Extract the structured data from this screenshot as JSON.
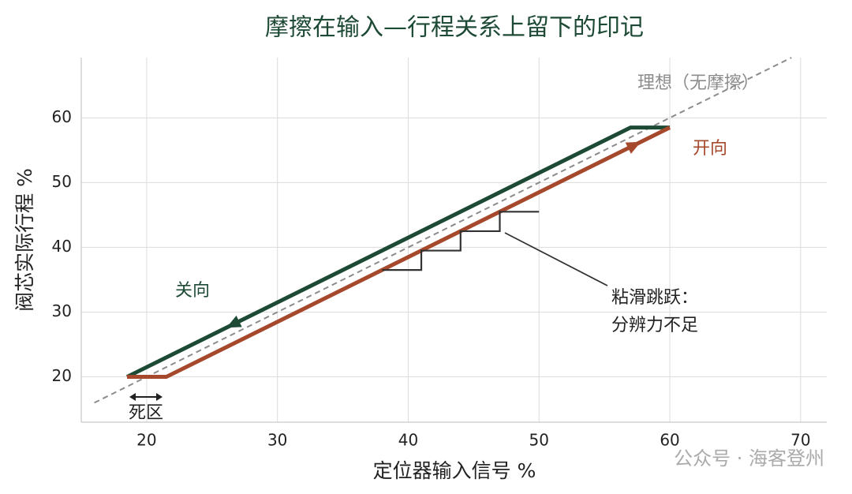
{
  "chart_data": {
    "type": "line",
    "title": "摩擦在输入—行程关系上留下的印记",
    "x_label": "定位器输入信号  %",
    "y_label": "阀芯实际行程  %",
    "xlim": [
      15,
      72
    ],
    "ylim": [
      13,
      69.3
    ],
    "xticks": [
      20,
      30,
      40,
      50,
      60,
      70
    ],
    "yticks": [
      20,
      30,
      40,
      50,
      60
    ],
    "grid": true,
    "series": [
      {
        "name": "理想（无摩擦）",
        "color": "#8c8c8c",
        "style": "dashed",
        "x": [
          16,
          69.3
        ],
        "values": [
          16,
          69.3
        ]
      },
      {
        "name": "关向",
        "color": "#1d4a35",
        "style": "solid",
        "x": [
          18.5,
          57,
          60
        ],
        "values": [
          20,
          58.5,
          58.5
        ]
      },
      {
        "name": "开向",
        "color": "#a6482c",
        "style": "solid",
        "x": [
          18.5,
          21.5,
          60
        ],
        "values": [
          20,
          20,
          58.5
        ]
      },
      {
        "color": "#333333",
        "style": "thin",
        "x": [
          38,
          41,
          41,
          44,
          44,
          47,
          47,
          50
        ],
        "values": [
          36.5,
          36.5,
          39.5,
          39.5,
          42.5,
          42.5,
          45.5,
          45.5
        ]
      }
    ],
    "annotations": {
      "stick_slip": [
        "粘滑跳跃：",
        "分辨力不足"
      ],
      "dead_zone": "死区"
    },
    "watermark": "公众号 · 海客登州"
  }
}
